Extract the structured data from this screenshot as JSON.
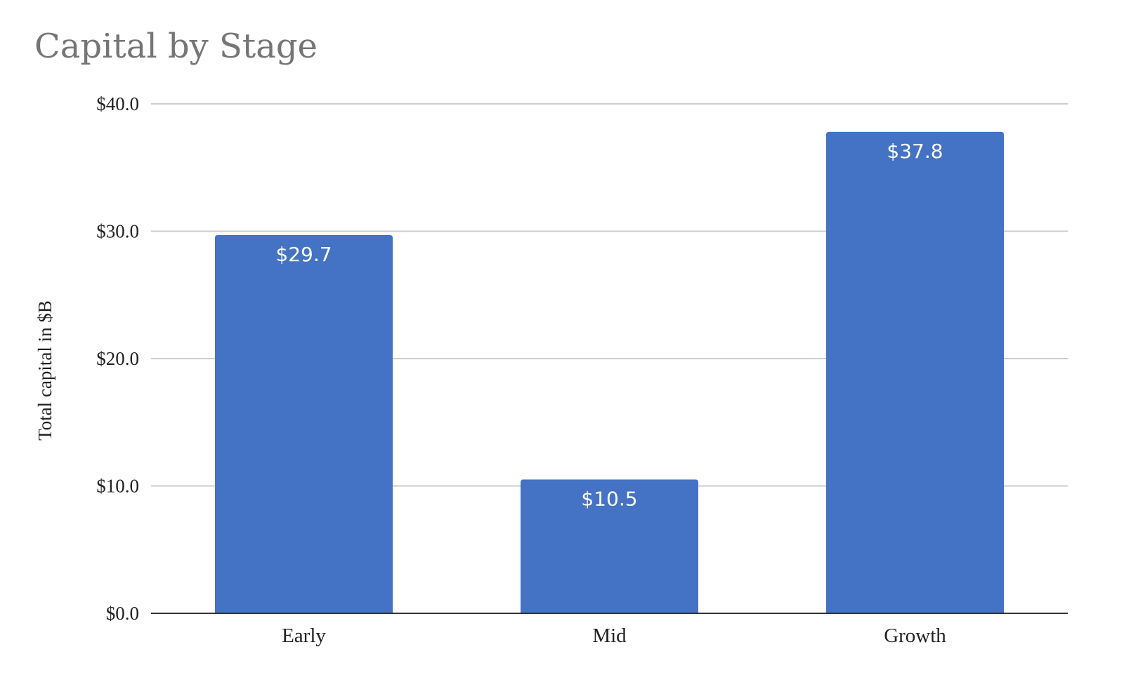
{
  "chart_data": {
    "type": "bar",
    "title": "Capital by Stage",
    "xlabel": "",
    "ylabel": "Total capital in $B",
    "categories": [
      "Early",
      "Mid",
      "Growth"
    ],
    "values": [
      29.7,
      10.5,
      37.8
    ],
    "value_labels": [
      "$29.7",
      "$10.5",
      "$37.8"
    ],
    "ylim": [
      0,
      40
    ],
    "yticks": [
      0,
      10,
      20,
      30,
      40
    ],
    "ytick_labels": [
      "$0.0",
      "$10.0",
      "$20.0",
      "$30.0",
      "$40.0"
    ],
    "grid": true,
    "legend": "none",
    "bar_color": "#4472c4",
    "grid_color": "#cccccc",
    "axis_color": "#333333"
  }
}
